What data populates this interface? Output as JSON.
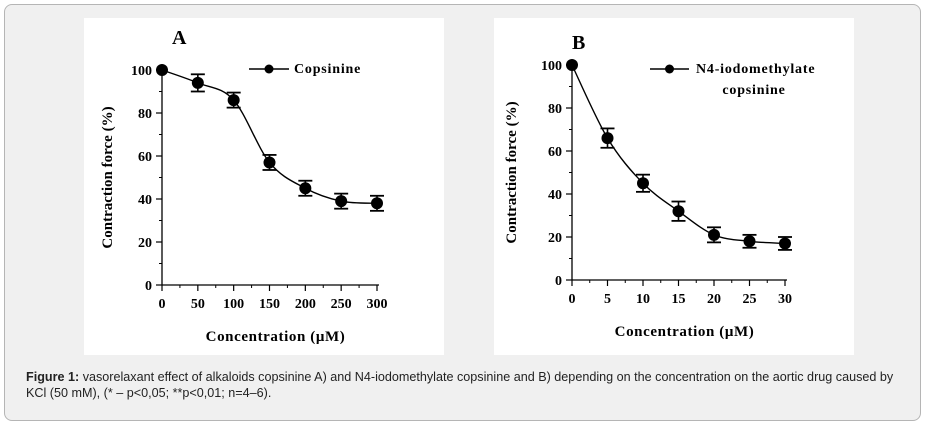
{
  "caption": {
    "label": "Figure 1:",
    "text": "vasorelaxant effect of alkaloids copsinine A) and N4-iodomethylate copsinine and B) depending on the concentration on the aortic drug caused by KCl (50 mM), (* – p<0,05; **p<0,01; n=4–6)."
  },
  "chart_data": [
    {
      "type": "line",
      "panel": "A",
      "title": "",
      "legend": "Copsinine",
      "xlabel": "Concentration (μM)",
      "ylabel": "Contraction force (%)",
      "xlim": [
        0,
        300
      ],
      "ylim": [
        0,
        100
      ],
      "x_ticks": [
        0,
        50,
        100,
        150,
        200,
        250,
        300
      ],
      "y_ticks": [
        0,
        20,
        40,
        60,
        80,
        100
      ],
      "series": [
        {
          "name": "Copsinine",
          "x": [
            0,
            50,
            100,
            150,
            200,
            250,
            300
          ],
          "y": [
            100,
            94,
            86,
            57,
            45,
            39,
            38
          ],
          "error": [
            0,
            4,
            3.5,
            3.5,
            3.5,
            3.5,
            3.5
          ]
        }
      ]
    },
    {
      "type": "line",
      "panel": "B",
      "title": "",
      "legend": [
        "N4-iodomethylate",
        "copsinine"
      ],
      "xlabel": "Concentration (μM)",
      "ylabel": "Contraction force (%)",
      "xlim": [
        0,
        30
      ],
      "ylim": [
        0,
        100
      ],
      "x_ticks": [
        0,
        5,
        10,
        15,
        20,
        25,
        30
      ],
      "y_ticks": [
        0,
        20,
        40,
        60,
        80,
        100
      ],
      "series": [
        {
          "name": "N4-iodomethylate copsinine",
          "x": [
            0,
            5,
            10,
            15,
            20,
            25,
            30
          ],
          "y": [
            100,
            66,
            45,
            32,
            21,
            18,
            17
          ],
          "error": [
            0,
            4.5,
            4,
            4.5,
            3.5,
            3,
            3
          ]
        }
      ]
    }
  ]
}
